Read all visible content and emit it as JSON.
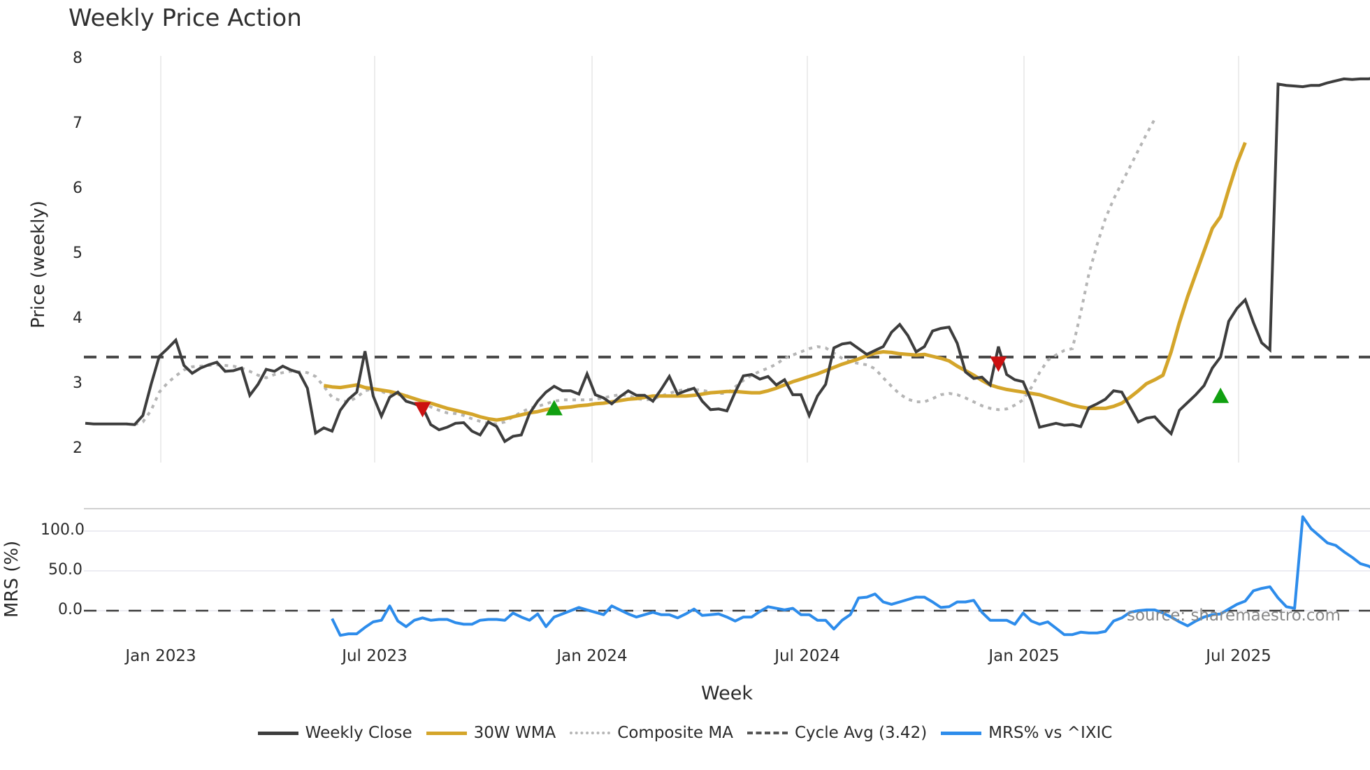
{
  "title": "Weekly Price Action",
  "source": "source: sharemaestro.com",
  "price_panel": {
    "ylabel": "Price (weekly)",
    "yticks": [
      "2",
      "3",
      "4",
      "5",
      "6",
      "7",
      "8"
    ]
  },
  "mrs_panel": {
    "ylabel": "MRS (%)",
    "yticks": [
      "0.0",
      "50.0",
      "100.0"
    ]
  },
  "xaxis": {
    "label": "Week",
    "ticks": [
      "Jan 2023",
      "Jul 2023",
      "Jan 2024",
      "Jul 2024",
      "Jan 2025",
      "Jul 2025"
    ]
  },
  "legend": [
    {
      "label": "Weekly Close",
      "color": "#3d3d3d",
      "style": "solid"
    },
    {
      "label": "30W WMA",
      "color": "#d4a52a",
      "style": "solid"
    },
    {
      "label": "Composite MA",
      "color": "#b5b5b5",
      "style": "dotted"
    },
    {
      "label": "Cycle Avg (3.42)",
      "color": "#555555",
      "style": "dashed"
    },
    {
      "label": "MRS% vs ^IXIC",
      "color": "#2d8ceb",
      "style": "solid"
    }
  ],
  "chart_data": {
    "type": "line",
    "title": "Weekly Price Action",
    "xlabel": "Week",
    "x_ticks": [
      "Jan 2023",
      "Jul 2023",
      "Jan 2024",
      "Jul 2024",
      "Jan 2025",
      "Jul 2025"
    ],
    "panels": [
      {
        "name": "price",
        "ylabel": "Price (weekly)",
        "ylim": [
          1.85,
          8.05
        ],
        "yticks": [
          2,
          3,
          4,
          5,
          6,
          7,
          8
        ],
        "grid": "vertical",
        "x_week_index_range": [
          0,
          156
        ],
        "series": [
          {
            "name": "Weekly Close",
            "color": "#3d3d3d",
            "values": [
              2.4,
              2.39,
              2.39,
              2.39,
              2.39,
              2.39,
              2.38,
              2.52,
              3.0,
              3.43,
              3.55,
              3.68,
              3.29,
              3.17,
              3.25,
              3.3,
              3.34,
              3.2,
              3.21,
              3.25,
              2.83,
              3.0,
              3.23,
              3.2,
              3.28,
              3.22,
              3.18,
              2.94,
              2.25,
              2.33,
              2.28,
              2.6,
              2.77,
              2.88,
              3.51,
              2.82,
              2.51,
              2.8,
              2.88,
              2.74,
              2.7,
              2.65,
              2.38,
              2.3,
              2.34,
              2.4,
              2.41,
              2.28,
              2.22,
              2.42,
              2.35,
              2.12,
              2.2,
              2.22,
              2.55,
              2.74,
              2.88,
              2.97,
              2.9,
              2.9,
              2.85,
              3.16,
              2.84,
              2.79,
              2.7,
              2.81,
              2.9,
              2.83,
              2.83,
              2.74,
              2.92,
              3.12,
              2.85,
              2.9,
              2.94,
              2.74,
              2.61,
              2.62,
              2.59,
              2.88,
              3.13,
              3.15,
              3.08,
              3.12,
              2.99,
              3.07,
              2.84,
              2.84,
              2.52,
              2.82,
              3.0,
              3.56,
              3.62,
              3.64,
              3.55,
              3.46,
              3.52,
              3.58,
              3.8,
              3.92,
              3.75,
              3.5,
              3.58,
              3.82,
              3.86,
              3.88,
              3.63,
              3.19,
              3.09,
              3.11,
              2.99,
              3.58,
              3.15,
              3.07,
              3.04,
              2.75,
              2.34,
              2.37,
              2.4,
              2.37,
              2.38,
              2.35,
              2.64,
              2.7,
              2.77,
              2.9,
              2.88,
              2.65,
              2.42,
              2.48,
              2.5,
              2.36,
              2.24,
              2.6,
              2.72,
              2.84,
              2.98,
              3.25,
              3.42,
              3.97,
              4.17,
              4.3,
              3.95,
              3.64,
              3.53,
              7.62,
              7.6,
              7.59,
              7.58,
              7.6,
              7.6,
              7.64,
              7.67,
              7.7,
              7.69,
              7.7,
              7.7,
              7.72
            ]
          },
          {
            "name": "30W WMA",
            "color": "#d4a52a",
            "start_index": 29,
            "values": [
              2.98,
              2.96,
              2.95,
              2.97,
              2.99,
              2.95,
              2.93,
              2.91,
              2.89,
              2.86,
              2.82,
              2.78,
              2.74,
              2.71,
              2.67,
              2.63,
              2.6,
              2.57,
              2.54,
              2.5,
              2.47,
              2.45,
              2.47,
              2.5,
              2.53,
              2.56,
              2.58,
              2.61,
              2.63,
              2.64,
              2.65,
              2.67,
              2.68,
              2.7,
              2.71,
              2.73,
              2.75,
              2.77,
              2.78,
              2.8,
              2.82,
              2.82,
              2.82,
              2.82,
              2.82,
              2.83,
              2.85,
              2.87,
              2.88,
              2.89,
              2.89,
              2.88,
              2.87,
              2.87,
              2.9,
              2.94,
              2.99,
              3.04,
              3.08,
              3.12,
              3.16,
              3.21,
              3.26,
              3.31,
              3.35,
              3.39,
              3.44,
              3.48,
              3.5,
              3.49,
              3.47,
              3.46,
              3.45,
              3.46,
              3.43,
              3.4,
              3.36,
              3.28,
              3.21,
              3.14,
              3.06,
              2.99,
              2.95,
              2.92,
              2.9,
              2.88,
              2.86,
              2.84,
              2.8,
              2.76,
              2.72,
              2.68,
              2.65,
              2.63,
              2.63,
              2.63,
              2.66,
              2.71,
              2.8,
              2.9,
              3.01,
              3.07,
              3.14,
              3.5,
              3.95,
              4.35,
              4.7,
              5.05,
              5.4,
              5.58,
              6.0,
              6.4,
              6.72
            ]
          },
          {
            "name": "Composite MA",
            "color": "#b5b5b5",
            "style": "dotted",
            "start_index": 5,
            "values": [
              2.39,
              2.38,
              2.42,
              2.6,
              2.88,
              3.02,
              3.13,
              3.22,
              3.27,
              3.28,
              3.29,
              3.3,
              3.29,
              3.28,
              3.25,
              3.2,
              3.14,
              3.1,
              3.15,
              3.18,
              3.2,
              3.19,
              3.18,
              3.12,
              2.97,
              2.8,
              2.75,
              2.73,
              2.8,
              2.9,
              2.93,
              2.89,
              2.84,
              2.84,
              2.83,
              2.78,
              2.72,
              2.65,
              2.6,
              2.56,
              2.55,
              2.52,
              2.47,
              2.43,
              2.4,
              2.39,
              2.42,
              2.5,
              2.57,
              2.63,
              2.66,
              2.7,
              2.74,
              2.76,
              2.76,
              2.76,
              2.76,
              2.77,
              2.79,
              2.82,
              2.84,
              2.83,
              2.78,
              2.76,
              2.77,
              2.82,
              2.86,
              2.9,
              2.92,
              2.92,
              2.91,
              2.88,
              2.86,
              2.86,
              2.96,
              3.06,
              3.14,
              3.2,
              3.25,
              3.31,
              3.4,
              3.45,
              3.5,
              3.55,
              3.58,
              3.56,
              3.48,
              3.4,
              3.35,
              3.32,
              3.3,
              3.24,
              3.1,
              2.97,
              2.85,
              2.77,
              2.73,
              2.73,
              2.78,
              2.84,
              2.86,
              2.84,
              2.79,
              2.73,
              2.67,
              2.63,
              2.61,
              2.62,
              2.68,
              2.76,
              2.95,
              3.18,
              3.37,
              3.45,
              3.52,
              3.55,
              4.1,
              4.7,
              5.15,
              5.55,
              5.85,
              6.1,
              6.35,
              6.6,
              6.85,
              7.08
            ]
          }
        ],
        "reference_lines": [
          {
            "name": "Cycle Avg (3.42)",
            "y": 3.42,
            "style": "dashed",
            "color": "#555555"
          }
        ],
        "markers": [
          {
            "type": "sell",
            "shape": "triangle-down",
            "color": "#cc1111",
            "index": 41,
            "y": 2.62
          },
          {
            "type": "buy",
            "shape": "triangle-up",
            "color": "#11a011",
            "index": 57,
            "y": 2.63
          },
          {
            "type": "sell",
            "shape": "triangle-down",
            "color": "#cc1111",
            "index": 111,
            "y": 3.32
          },
          {
            "type": "buy",
            "shape": "triangle-up",
            "color": "#11a011",
            "index": 138,
            "y": 2.82
          }
        ]
      },
      {
        "name": "mrs",
        "ylabel": "MRS (%)",
        "ylim": [
          -32,
          118
        ],
        "yticks": [
          0,
          50,
          100
        ],
        "series": [
          {
            "name": "MRS% vs ^IXIC",
            "color": "#2d8ceb",
            "start_index": 30,
            "values": [
              -10,
              -31,
              -29,
              -29,
              -21,
              -14,
              -12,
              6,
              -13,
              -20,
              -12,
              -9,
              -12,
              -11,
              -11,
              -15,
              -17,
              -17,
              -12,
              -11,
              -11,
              -12,
              -3,
              -8,
              -12,
              -4,
              -20,
              -8,
              -4,
              0,
              4,
              1,
              -2,
              -5,
              6,
              1,
              -4,
              -8,
              -5,
              -2,
              -5,
              -5,
              -9,
              -4,
              2,
              -6,
              -5,
              -4,
              -8,
              -13,
              -8,
              -8,
              -1,
              5,
              3,
              1,
              3,
              -5,
              -5,
              -12,
              -12,
              -23,
              -12,
              -5,
              16,
              17,
              21,
              11,
              8,
              11,
              14,
              17,
              17,
              11,
              4,
              5,
              11,
              11,
              13,
              -2,
              -12,
              -12,
              -12,
              -17,
              -3,
              -13,
              -17,
              -14,
              -22,
              -30,
              -30,
              -27,
              -28,
              -28,
              -26,
              -13,
              -9,
              -2,
              0,
              1,
              1,
              -3,
              -8,
              -14,
              -19,
              -13,
              -8,
              -5,
              -4,
              2,
              8,
              12,
              25,
              28,
              30,
              16,
              5,
              3,
              118,
              103,
              94,
              85,
              82,
              74,
              67,
              59,
              56,
              50,
              50,
              43,
              40
            ]
          }
        ],
        "reference_lines": [
          {
            "y": 0,
            "style": "dashed",
            "color": "#444444"
          }
        ]
      }
    ],
    "legend_position": "bottom-center",
    "annotations": [
      "source: sharemaestro.com"
    ]
  }
}
